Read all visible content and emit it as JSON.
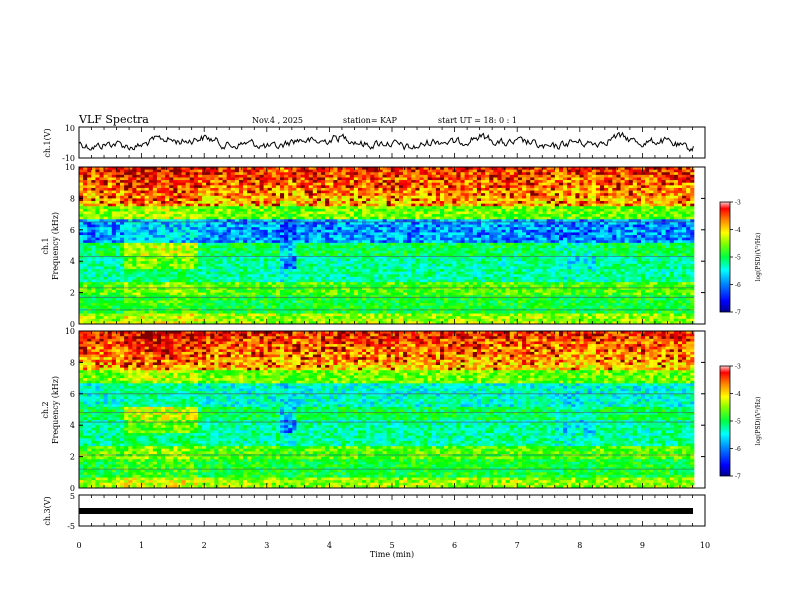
{
  "header": {
    "title": "VLF Spectra",
    "date": "Nov.4 , 2025",
    "station": "station= KAP",
    "start": "start UT = 18: 0 : 1"
  },
  "chart_data": {
    "type": "heatmap",
    "x_axis": {
      "label": "Time (min)",
      "range": [
        0,
        10
      ],
      "ticks": [
        "0",
        "1",
        "2",
        "3",
        "4",
        "5",
        "6",
        "7",
        "8",
        "9",
        "10"
      ],
      "data_end_min": 9.83
    },
    "panels": [
      {
        "id": "ch1v",
        "kind": "line",
        "ylabel": "ch.1(V)",
        "ylim": [
          -10,
          10
        ],
        "yticks": [
          "10",
          "-10"
        ],
        "line_color": "#000000",
        "approx_amplitude_v": 4
      },
      {
        "id": "ch1",
        "kind": "spectrogram",
        "ylabel_channel": "ch.1",
        "ylabel": "Frequency (kHz)",
        "ylim": [
          0,
          10
        ],
        "yticks": [
          "0",
          "2",
          "4",
          "6",
          "8",
          "10"
        ],
        "colorbar": {
          "label": "log(PSD)(V²/Hz)",
          "range": [
            -7,
            -3
          ],
          "ticks": [
            "-3",
            "-4",
            "-5",
            "-6",
            "-7"
          ]
        },
        "description_bands_khz": {
          "high_noise_top": [
            7.5,
            10
          ],
          "blue_quiet_band": [
            5.2,
            6.4
          ],
          "green_mid": [
            2.5,
            5.2
          ],
          "lower_green": [
            0.5,
            2.5
          ]
        }
      },
      {
        "id": "ch2",
        "kind": "spectrogram",
        "ylabel_channel": "ch.2",
        "ylabel": "Frequency (kHz)",
        "ylim": [
          0,
          10
        ],
        "yticks": [
          "0",
          "2",
          "4",
          "6",
          "8",
          "10"
        ],
        "colorbar": {
          "label": "log(PSD)(V²/Hz)",
          "range": [
            -7,
            -3
          ],
          "ticks": [
            "-3",
            "-4",
            "-5",
            "-6",
            "-7"
          ]
        }
      },
      {
        "id": "ch3v",
        "kind": "line",
        "ylabel": "ch.3(V)",
        "ylim": [
          -5,
          5
        ],
        "yticks": [
          "5",
          "-5"
        ],
        "line_color": "#000000",
        "approx_value_v": 0
      }
    ],
    "colormap": [
      "#000090",
      "#0000ff",
      "#0080ff",
      "#00ffff",
      "#00ff80",
      "#00ff00",
      "#80ff00",
      "#ffff00",
      "#ff8000",
      "#ff0000",
      "#800000"
    ]
  }
}
